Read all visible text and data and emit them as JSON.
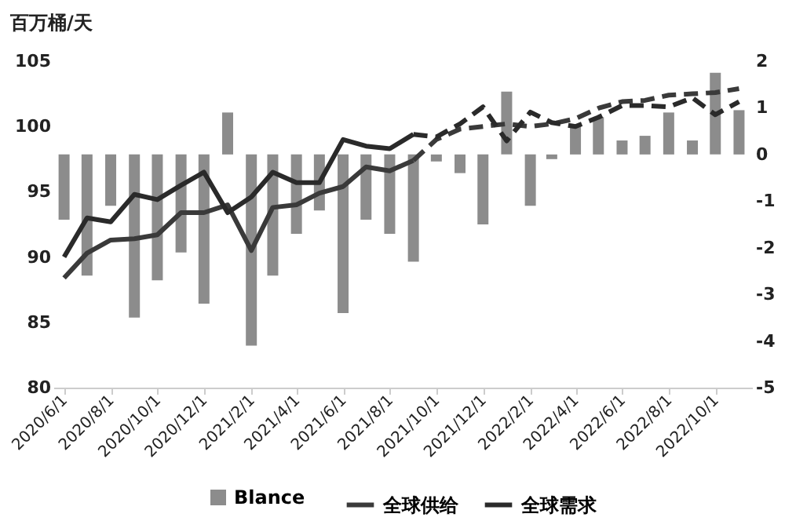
{
  "chart_data": {
    "type": "line",
    "ylabel": "百万桶/天",
    "legend": "bottom",
    "x": [
      "2020-06",
      "2020-07",
      "2020-08",
      "2020-09",
      "2020-10",
      "2020-11",
      "2020-12",
      "2021-01",
      "2021-02",
      "2021-03",
      "2021-04",
      "2021-05",
      "2021-06",
      "2021-07",
      "2021-08",
      "2021-09",
      "2021-10",
      "2021-11",
      "2021-12",
      "2022-01",
      "2022-02",
      "2022-03",
      "2022-04",
      "2022-05",
      "2022-06",
      "2022-07",
      "2022-08",
      "2022-09",
      "2022-10",
      "2022-11"
    ],
    "xlim": [
      "2020-05-18",
      "2022-11-18"
    ],
    "xticks": [
      {
        "value": "2020-06",
        "label": "2020/6/1"
      },
      {
        "value": "2020-08",
        "label": "2020/8/1"
      },
      {
        "value": "2020-10",
        "label": "2020/10/1"
      },
      {
        "value": "2020-12",
        "label": "2020/12/1"
      },
      {
        "value": "2021-02",
        "label": "2021/2/1"
      },
      {
        "value": "2021-04",
        "label": "2021/4/1"
      },
      {
        "value": "2021-06",
        "label": "2021/6/1"
      },
      {
        "value": "2021-08",
        "label": "2021/8/1"
      },
      {
        "value": "2021-10",
        "label": "2021/10/1"
      },
      {
        "value": "2021-12",
        "label": "2021/12/1"
      },
      {
        "value": "2022-02",
        "label": "2022/2/1"
      },
      {
        "value": "2022-04",
        "label": "2022/4/1"
      },
      {
        "value": "2022-06",
        "label": "2022/6/1"
      },
      {
        "value": "2022-08",
        "label": "2022/8/1"
      },
      {
        "value": "2022-10",
        "label": "2022/10/1"
      }
    ],
    "ylim": [
      80,
      105
    ],
    "yticks": [
      80,
      85,
      90,
      95,
      100,
      105
    ],
    "y2lim": [
      -5,
      2
    ],
    "y2ticks": [
      -5,
      -4,
      -3,
      -2,
      -1,
      0,
      1,
      2
    ],
    "series": [
      {
        "name": "Blance",
        "type": "bar",
        "axis": "y2",
        "color": "#8c8c8c",
        "values": [
          -1.4,
          -2.6,
          -1.1,
          -3.5,
          -2.7,
          -2.1,
          -3.2,
          0.9,
          -4.1,
          -2.6,
          -1.7,
          -1.2,
          -3.4,
          -1.4,
          -1.7,
          -2.3,
          -0.15,
          -0.4,
          -1.5,
          1.35,
          -1.1,
          -0.1,
          0.6,
          0.8,
          0.3,
          0.4,
          0.9,
          0.3,
          1.75,
          0.95
        ]
      },
      {
        "name": "全球供给",
        "color": "#3a3a3a",
        "line_style": "solid",
        "values": [
          88.4,
          90.3,
          91.3,
          91.4,
          91.7,
          93.4,
          93.4,
          94.0,
          90.5,
          93.8,
          94.0,
          94.9,
          95.4,
          96.9,
          96.6,
          97.4,
          null,
          null,
          null,
          null,
          null,
          null,
          null,
          null,
          null,
          null,
          null,
          null,
          null,
          null
        ]
      },
      {
        "name": "全球需求",
        "color": "#2a2a2a",
        "line_style": "solid",
        "values": [
          90.0,
          93.0,
          92.7,
          94.8,
          94.4,
          95.5,
          96.5,
          93.4,
          94.6,
          96.5,
          95.7,
          95.7,
          99.0,
          98.5,
          98.3,
          99.4,
          null,
          null,
          null,
          null,
          null,
          null,
          null,
          null,
          null,
          null,
          null,
          null,
          null,
          null
        ]
      },
      {
        "color": "#3a3a3a",
        "line_style": "dashed",
        "values": [
          null,
          null,
          null,
          null,
          null,
          null,
          null,
          null,
          null,
          null,
          null,
          null,
          null,
          null,
          null,
          97.4,
          99.0,
          99.8,
          100.0,
          100.2,
          100.0,
          100.2,
          100.6,
          101.4,
          101.9,
          102.0,
          102.4,
          102.5,
          102.6,
          102.9
        ]
      },
      {
        "color": "#2a2a2a",
        "line_style": "dashed",
        "values": [
          null,
          null,
          null,
          null,
          null,
          null,
          null,
          null,
          null,
          null,
          null,
          null,
          null,
          null,
          null,
          99.4,
          99.2,
          100.2,
          101.5,
          98.9,
          101.1,
          100.3,
          100.0,
          100.7,
          101.6,
          101.6,
          101.5,
          102.2,
          100.9,
          101.9
        ]
      }
    ]
  }
}
